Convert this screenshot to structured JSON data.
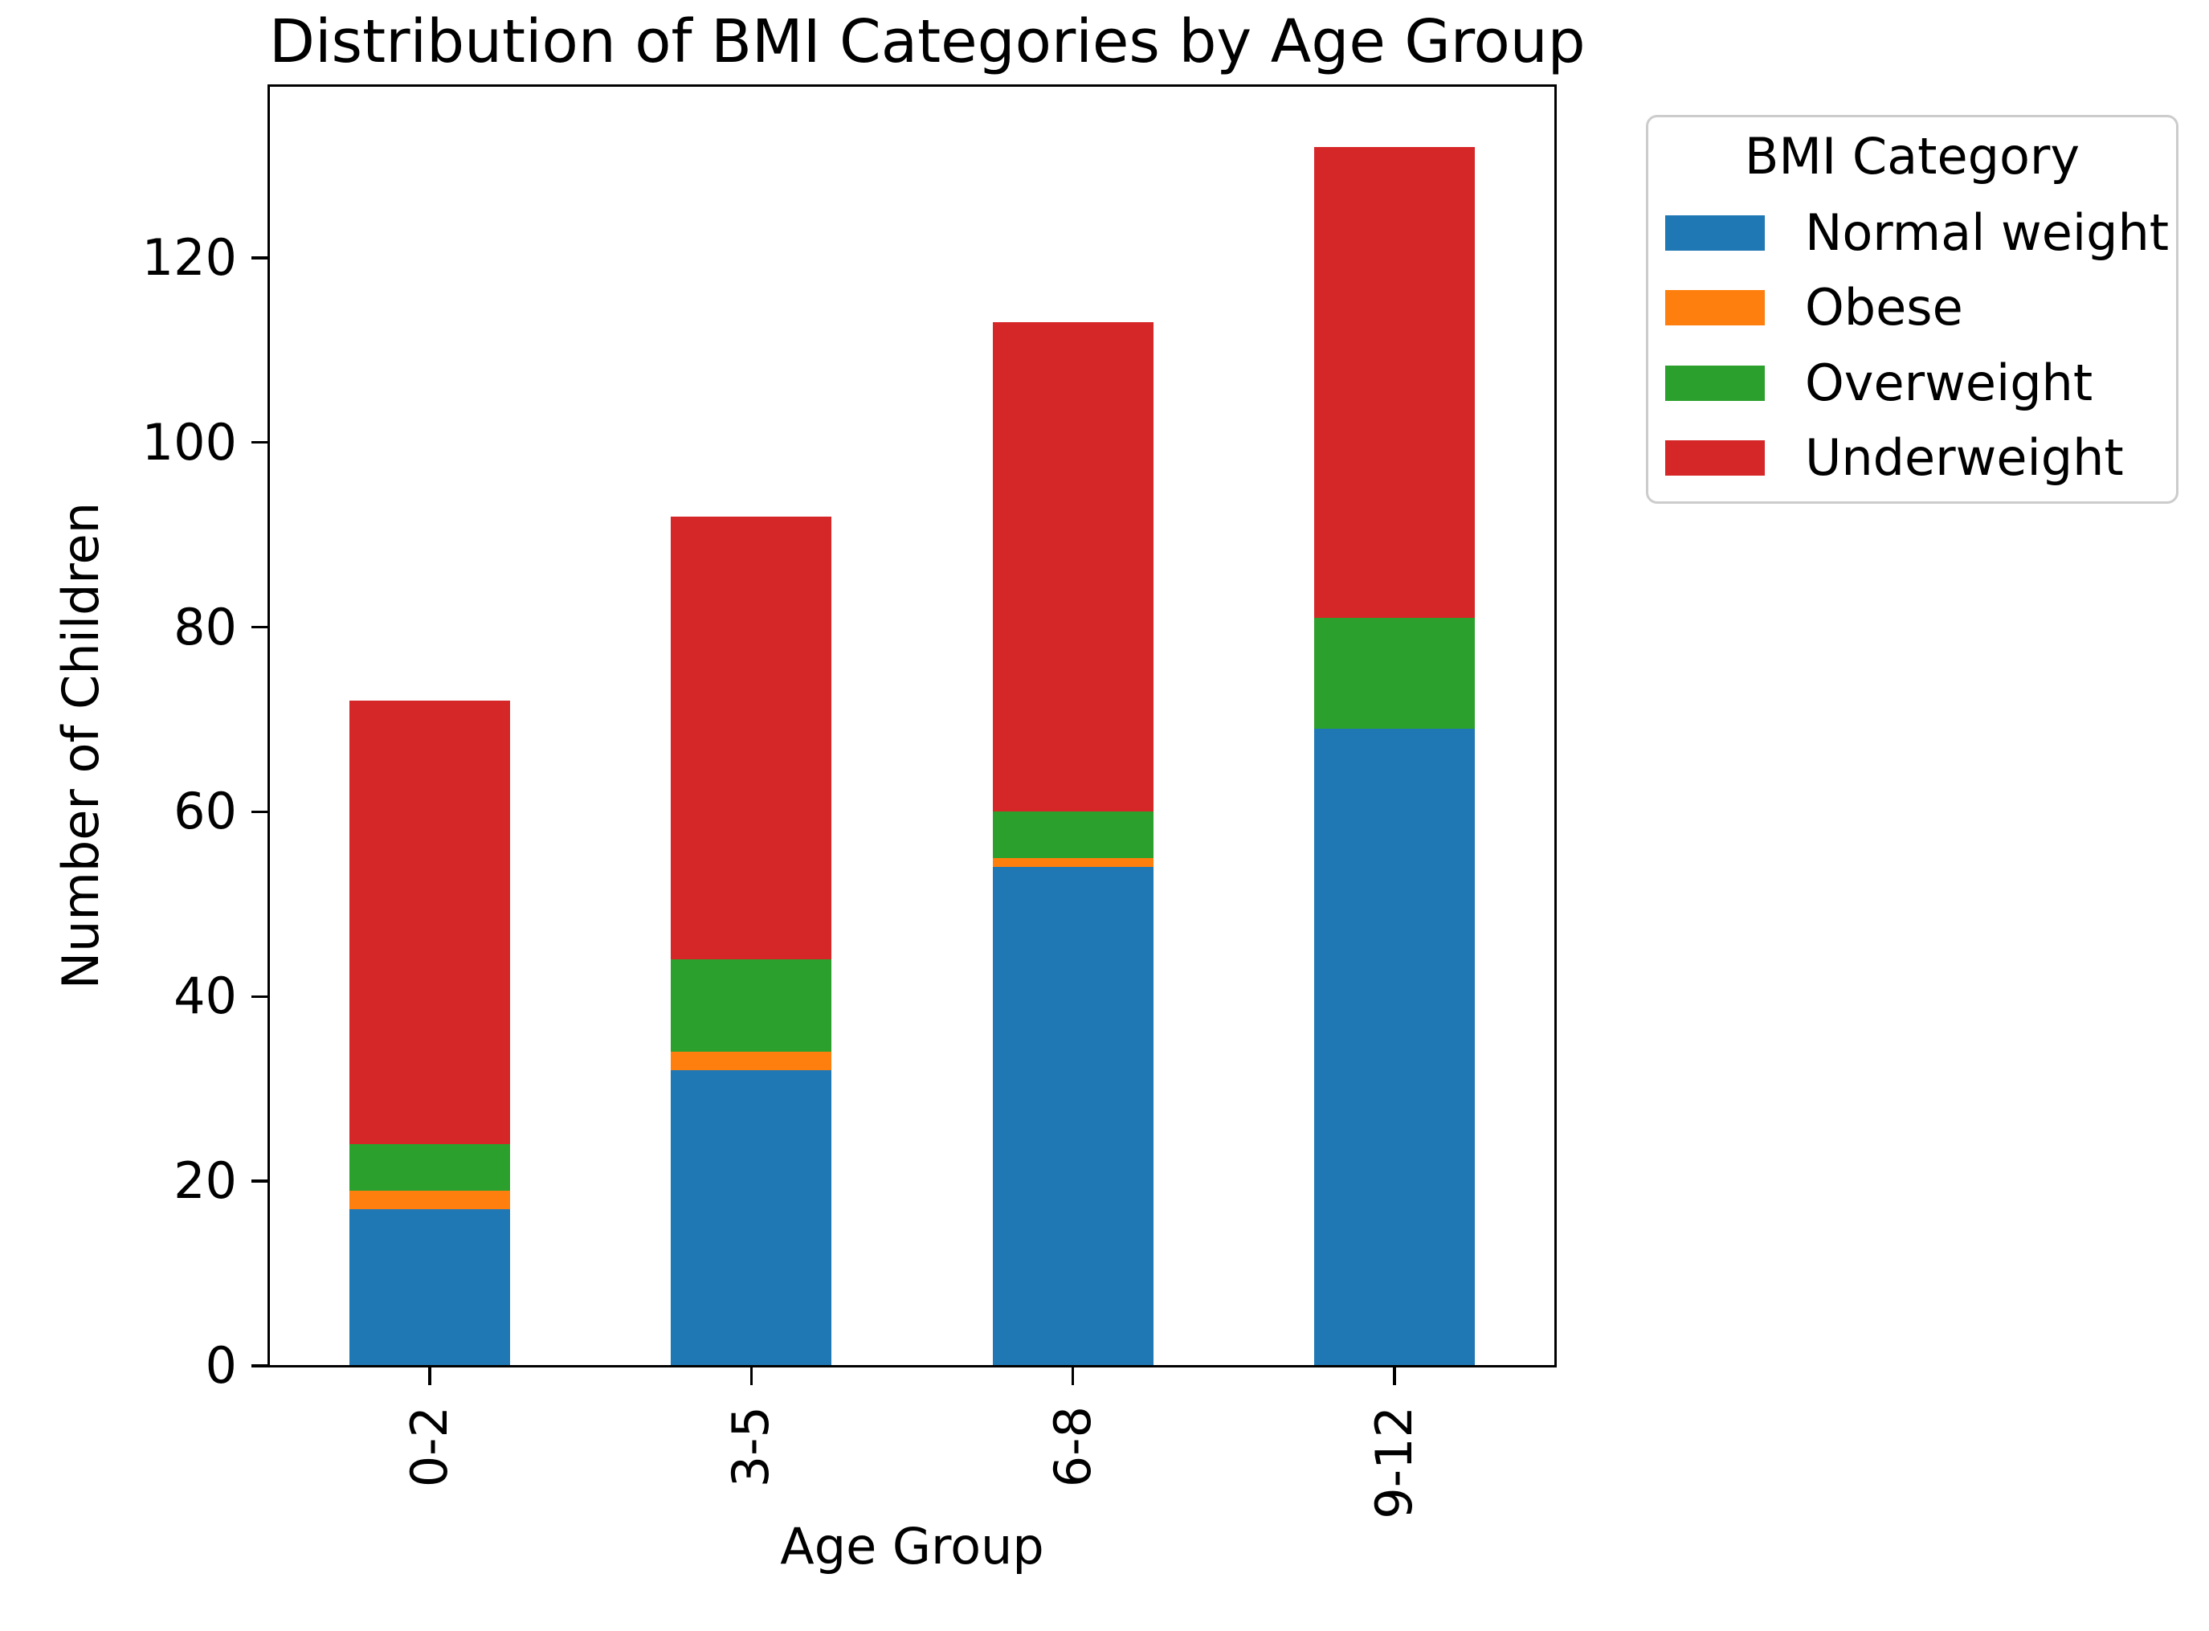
{
  "title": "Distribution of BMI Categories by Age Group",
  "x_axis": {
    "label": "Age Group",
    "tick_labels": [
      "0-2",
      "3-5",
      "6-8",
      "9-12"
    ]
  },
  "y_axis": {
    "label": "Number of Children",
    "tick_labels": [
      "0",
      "20",
      "40",
      "60",
      "80",
      "100",
      "120"
    ]
  },
  "legend": {
    "title": "BMI Category",
    "entries": [
      "Normal weight",
      "Obese",
      "Overweight",
      "Underweight"
    ]
  },
  "chart_data": {
    "type": "bar",
    "stacked": true,
    "title": "Distribution of BMI Categories by Age Group",
    "xlabel": "Age Group",
    "ylabel": "Number of Children",
    "categories": [
      "0-2",
      "3-5",
      "6-8",
      "9-12"
    ],
    "series": [
      {
        "name": "Normal weight",
        "color": "#1f77b4",
        "values": [
          17,
          32,
          54,
          69
        ]
      },
      {
        "name": "Obese",
        "color": "#ff7f0e",
        "values": [
          2,
          2,
          1,
          0
        ]
      },
      {
        "name": "Overweight",
        "color": "#2ca02c",
        "values": [
          5,
          10,
          5,
          12
        ]
      },
      {
        "name": "Underweight",
        "color": "#d62728",
        "values": [
          48,
          48,
          53,
          51
        ]
      }
    ],
    "totals": [
      72,
      92,
      113,
      132
    ],
    "ylim": [
      0,
      138.6
    ],
    "yticks": [
      0,
      20,
      40,
      60,
      80,
      100,
      120
    ],
    "grid": false,
    "legend_title": "BMI Category",
    "legend_position": "outside-upper-right"
  }
}
